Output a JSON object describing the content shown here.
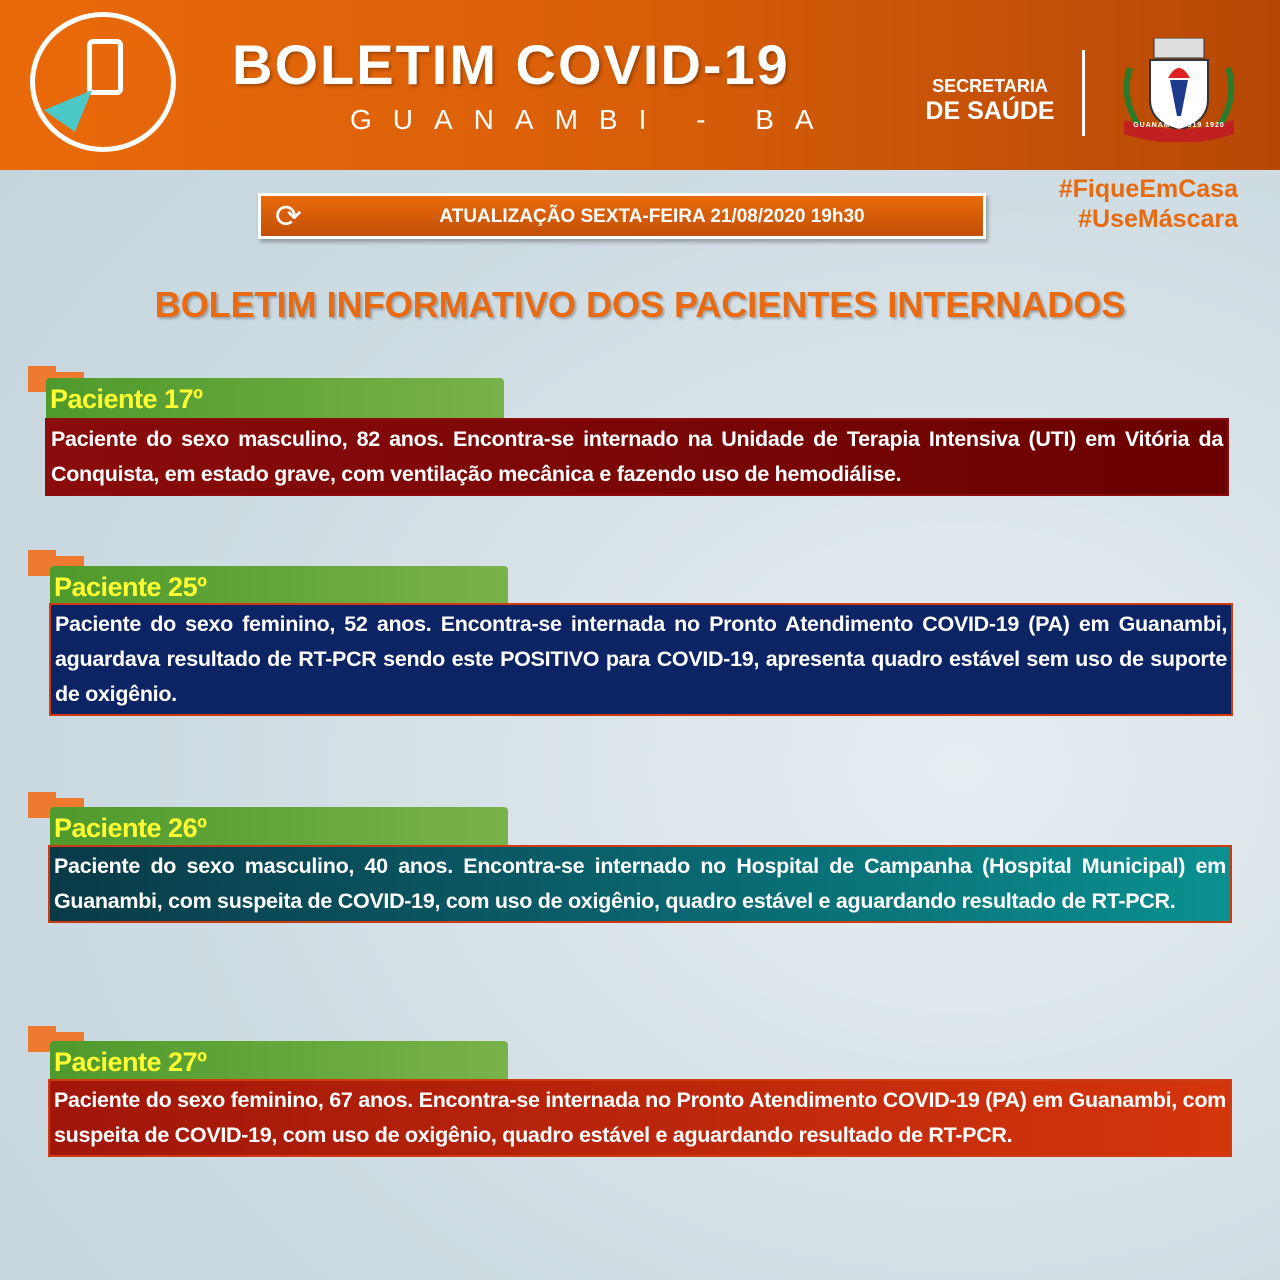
{
  "header": {
    "title": "BOLETIM COVID-19",
    "subtitle": "GUANAMBI - BA",
    "dept_line1": "SECRETARIA",
    "dept_line2": "DE SAÚDE",
    "crest_text": "GUANAMBI 1919 1920"
  },
  "update": {
    "icon": "refresh-icon",
    "text": "ATUALIZAÇÃO SEXTA-FEIRA 21/08/2020 19h30"
  },
  "hashtags": [
    "#FiqueEmCasa",
    "#UseMáscara"
  ],
  "heading": "BOLETIM INFORMATIVO DOS PACIENTES INTERNADOS",
  "patients": [
    {
      "label": "Paciente 17º",
      "text": "Paciente do sexo masculino, 82 anos. Encontra-se internado na Unidade de Terapia Intensiva (UTI) em Vitória da Conquista, em estado grave, com ventilação mecânica e fazendo uso de hemodiálise.",
      "color": "#7a0606"
    },
    {
      "label": "Paciente 25º",
      "text": "Paciente do sexo feminino, 52 anos. Encontra-se internada no Pronto Atendimento COVID-19 (PA) em Guanambi, aguardava resultado de RT-PCR sendo este POSITIVO para COVID-19, apresenta quadro estável sem uso de suporte de oxigênio.",
      "color": "#0c2463"
    },
    {
      "label": "Paciente 26º",
      "text": "Paciente do sexo masculino, 40 anos. Encontra-se internado no Hospital de Campanha (Hospital Municipal) em Guanambi, com suspeita de COVID-19, com uso de oxigênio, quadro estável e aguardando resultado de RT-PCR.",
      "color": "#0a7a80"
    },
    {
      "label": "Paciente 27º",
      "text": "Paciente do sexo feminino, 67 anos. Encontra-se internada no Pronto Atendimento COVID-19 (PA) em Guanambi, com suspeita de COVID-19, com uso de oxigênio, quadro estável e aguardando resultado de RT-PCR.",
      "color": "#c02a0a"
    }
  ]
}
